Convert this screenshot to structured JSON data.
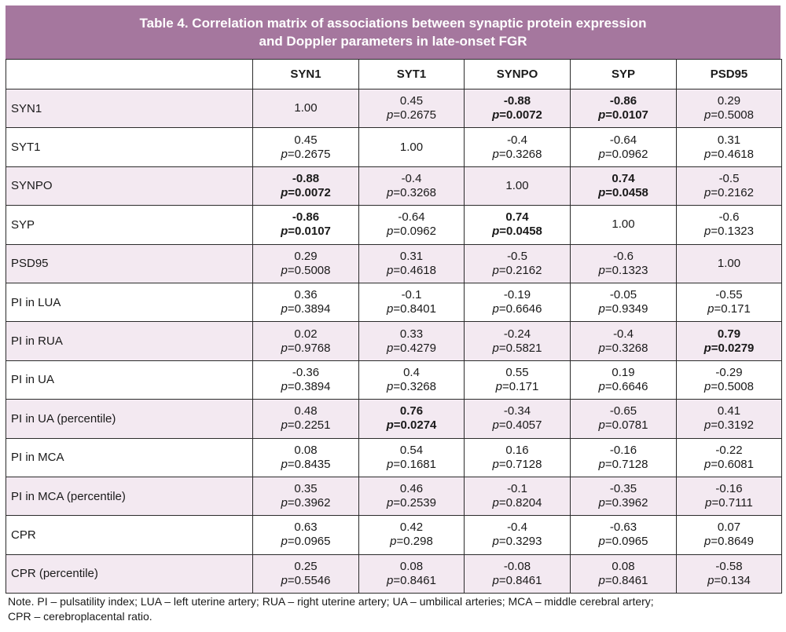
{
  "title": {
    "line1": "Table 4. Correlation matrix of associations between synaptic protein expression",
    "line2": "and Doppler parameters in late-onset FGR"
  },
  "columns": [
    "",
    "SYN1",
    "SYT1",
    "SYNPO",
    "SYP",
    "PSD95"
  ],
  "rows": [
    {
      "label": "SYN1",
      "cells": [
        {
          "r": "1.00",
          "p": ""
        },
        {
          "r": "0.45",
          "p": "0.2675"
        },
        {
          "r": "-0.88",
          "p": "0.0072",
          "bold": true
        },
        {
          "r": "-0.86",
          "p": "0.0107",
          "bold": true
        },
        {
          "r": "0.29",
          "p": "0.5008"
        }
      ]
    },
    {
      "label": "SYT1",
      "cells": [
        {
          "r": "0.45",
          "p": "0.2675"
        },
        {
          "r": "1.00",
          "p": ""
        },
        {
          "r": "-0.4",
          "p": "0.3268"
        },
        {
          "r": "-0.64",
          "p": "0.0962"
        },
        {
          "r": "0.31",
          "p": "0.4618"
        }
      ]
    },
    {
      "label": "SYNPO",
      "cells": [
        {
          "r": "-0.88",
          "p": "0.0072",
          "bold": true
        },
        {
          "r": "-0.4",
          "p": "0.3268"
        },
        {
          "r": "1.00",
          "p": ""
        },
        {
          "r": "0.74",
          "p": "0.0458",
          "bold": true
        },
        {
          "r": "-0.5",
          "p": "0.2162"
        }
      ]
    },
    {
      "label": "SYP",
      "cells": [
        {
          "r": "-0.86",
          "p": "0.0107",
          "bold": true
        },
        {
          "r": "-0.64",
          "p": "0.0962"
        },
        {
          "r": "0.74",
          "p": "0.0458",
          "bold": true
        },
        {
          "r": "1.00",
          "p": ""
        },
        {
          "r": "-0.6",
          "p": "0.1323"
        }
      ]
    },
    {
      "label": "PSD95",
      "cells": [
        {
          "r": "0.29",
          "p": "0.5008"
        },
        {
          "r": "0.31",
          "p": "0.4618"
        },
        {
          "r": "-0.5",
          "p": "0.2162"
        },
        {
          "r": "-0.6",
          "p": "0.1323"
        },
        {
          "r": "1.00",
          "p": ""
        }
      ]
    },
    {
      "label": "PI in LUA",
      "cells": [
        {
          "r": "0.36",
          "p": "0.3894"
        },
        {
          "r": "-0.1",
          "p": "0.8401"
        },
        {
          "r": "-0.19",
          "p": "0.6646"
        },
        {
          "r": "-0.05",
          "p": "0.9349"
        },
        {
          "r": "-0.55",
          "p": "0.171"
        }
      ]
    },
    {
      "label": "PI in RUA",
      "cells": [
        {
          "r": "0.02",
          "p": "0.9768"
        },
        {
          "r": "0.33",
          "p": "0.4279"
        },
        {
          "r": "-0.24",
          "p": "0.5821"
        },
        {
          "r": "-0.4",
          "p": "0.3268"
        },
        {
          "r": "0.79",
          "p": "0.0279",
          "bold": true
        }
      ]
    },
    {
      "label": "PI in UA",
      "cells": [
        {
          "r": "-0.36",
          "p": "0.3894"
        },
        {
          "r": "0.4",
          "p": "0.3268"
        },
        {
          "r": "0.55",
          "p": "0.171"
        },
        {
          "r": "0.19",
          "p": "0.6646"
        },
        {
          "r": "-0.29",
          "p": "0.5008"
        }
      ]
    },
    {
      "label": "PI in UA (percentile)",
      "cells": [
        {
          "r": "0.48",
          "p": "0.2251"
        },
        {
          "r": "0.76",
          "p": "0.0274",
          "bold": true
        },
        {
          "r": "-0.34",
          "p": "0.4057"
        },
        {
          "r": "-0.65",
          "p": "0.0781"
        },
        {
          "r": "0.41",
          "p": "0.3192"
        }
      ]
    },
    {
      "label": "PI in MCA",
      "cells": [
        {
          "r": "0.08",
          "p": "0.8435"
        },
        {
          "r": "0.54",
          "p": "0.1681"
        },
        {
          "r": "0.16",
          "p": "0.7128"
        },
        {
          "r": "-0.16",
          "p": "0.7128"
        },
        {
          "r": "-0.22",
          "p": "0.6081"
        }
      ]
    },
    {
      "label": "PI in MCA (percentile)",
      "cells": [
        {
          "r": "0.35",
          "p": "0.3962"
        },
        {
          "r": "0.46",
          "p": "0.2539"
        },
        {
          "r": "-0.1",
          "p": "0.8204"
        },
        {
          "r": "-0.35",
          "p": "0.3962"
        },
        {
          "r": "-0.16",
          "p": "0.7111"
        }
      ]
    },
    {
      "label": "CPR",
      "cells": [
        {
          "r": "0.63",
          "p": "0.0965"
        },
        {
          "r": "0.42",
          "p": "0.298"
        },
        {
          "r": "-0.4",
          "p": "0.3293"
        },
        {
          "r": "-0.63",
          "p": "0.0965"
        },
        {
          "r": "0.07",
          "p": "0.8649"
        }
      ]
    },
    {
      "label": "CPR (percentile)",
      "cells": [
        {
          "r": "0.25",
          "p": "0.5546"
        },
        {
          "r": "0.08",
          "p": "0.8461"
        },
        {
          "r": "-0.08",
          "p": "0.8461"
        },
        {
          "r": "0.08",
          "p": "0.8461"
        },
        {
          "r": "-0.58",
          "p": "0.134"
        }
      ]
    }
  ],
  "note": {
    "line1": "Note. PI – pulsatility index; LUA – left uterine artery; RUA – right uterine artery; UA – umbilical arteries; MCA – middle cerebral artery;",
    "line2": "CPR – cerebroplacental ratio."
  },
  "colors": {
    "header_band": "#a5779e",
    "row_tint": "#f3e9f1",
    "border": "#2b2b2b"
  }
}
